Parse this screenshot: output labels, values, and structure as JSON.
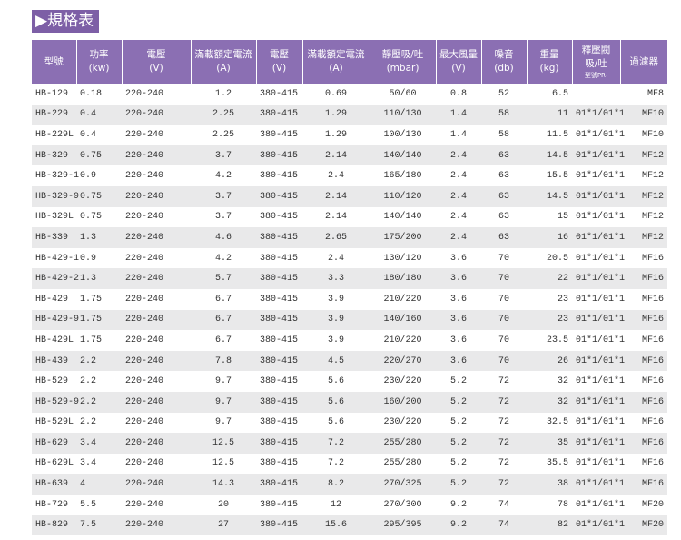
{
  "title": "▶規格表",
  "table": {
    "header": [
      [
        "型號"
      ],
      [
        "功率",
        "(kw)"
      ],
      [
        "電壓",
        "(V)"
      ],
      [
        "滿載額定電流",
        "(A)"
      ],
      [
        "電壓",
        "(V)"
      ],
      [
        "滿載額定電流",
        "(A)"
      ],
      [
        "靜壓吸/吐",
        "(mbar)"
      ],
      [
        "最大風量",
        "(V)"
      ],
      [
        "噪音",
        "(db)"
      ],
      [
        "重量",
        "(kg)"
      ],
      [
        "釋壓閥",
        "吸/吐",
        "型號PR-"
      ],
      [
        "過濾器"
      ]
    ],
    "rows": [
      [
        "HB-129",
        "0.18",
        "220-240",
        "1.2",
        "380-415",
        "0.69",
        "50/60",
        "0.8",
        "52",
        "6.5",
        null,
        "MF8"
      ],
      [
        "HB-229",
        "0.4",
        "220-240",
        "2.25",
        "380-415",
        "1.29",
        "110/130",
        "1.4",
        "58",
        "11",
        "01*1/01*1",
        "MF10"
      ],
      [
        "HB-229L",
        "0.4",
        "220-240",
        "2.25",
        "380-415",
        "1.29",
        "100/130",
        "1.4",
        "58",
        "11.5",
        "01*1/01*1",
        "MF10"
      ],
      [
        "HB-329",
        "0.75",
        "220-240",
        "3.7",
        "380-415",
        "2.14",
        "140/140",
        "2.4",
        "63",
        "14.5",
        "01*1/01*1",
        "MF12"
      ],
      [
        "HB-329-1",
        "0.9",
        "220-240",
        "4.2",
        "380-415",
        "2.4",
        "165/180",
        "2.4",
        "63",
        "15.5",
        "01*1/01*1",
        "MF12"
      ],
      [
        "HB-329-9",
        "0.75",
        "220-240",
        "3.7",
        "380-415",
        "2.14",
        "110/120",
        "2.4",
        "63",
        "14.5",
        "01*1/01*1",
        "MF12"
      ],
      [
        "HB-329L",
        "0.75",
        "220-240",
        "3.7",
        "380-415",
        "2.14",
        "140/140",
        "2.4",
        "63",
        "15",
        "01*1/01*1",
        "MF12"
      ],
      [
        "HB-339",
        "1.3",
        "220-240",
        "4.6",
        "380-415",
        "2.65",
        "175/200",
        "2.4",
        "63",
        "16",
        "01*1/01*1",
        "MF12"
      ],
      [
        "HB-429-1",
        "0.9",
        "220-240",
        "4.2",
        "380-415",
        "2.4",
        "130/120",
        "3.6",
        "70",
        "20.5",
        "01*1/01*1",
        "MF16"
      ],
      [
        "HB-429-2",
        "1.3",
        "220-240",
        "5.7",
        "380-415",
        "3.3",
        "180/180",
        "3.6",
        "70",
        "22",
        "01*1/01*1",
        "MF16"
      ],
      [
        "HB-429",
        "1.75",
        "220-240",
        "6.7",
        "380-415",
        "3.9",
        "210/220",
        "3.6",
        "70",
        "23",
        "01*1/01*1",
        "MF16"
      ],
      [
        "HB-429-9",
        "1.75",
        "220-240",
        "6.7",
        "380-415",
        "3.9",
        "140/160",
        "3.6",
        "70",
        "23",
        "01*1/01*1",
        "MF16"
      ],
      [
        "HB-429L",
        "1.75",
        "220-240",
        "6.7",
        "380-415",
        "3.9",
        "210/220",
        "3.6",
        "70",
        "23.5",
        "01*1/01*1",
        "MF16"
      ],
      [
        "HB-439",
        "2.2",
        "220-240",
        "7.8",
        "380-415",
        "4.5",
        "220/270",
        "3.6",
        "70",
        "26",
        "01*1/01*1",
        "MF16"
      ],
      [
        "HB-529",
        "2.2",
        "220-240",
        "9.7",
        "380-415",
        "5.6",
        "230/220",
        "5.2",
        "72",
        "32",
        "01*1/01*1",
        "MF16"
      ],
      [
        "HB-529-9",
        "2.2",
        "220-240",
        "9.7",
        "380-415",
        "5.6",
        "160/200",
        "5.2",
        "72",
        "32",
        "01*1/01*1",
        "MF16"
      ],
      [
        "HB-529L",
        "2.2",
        "220-240",
        "9.7",
        "380-415",
        "5.6",
        "230/220",
        "5.2",
        "72",
        "32.5",
        "01*1/01*1",
        "MF16"
      ],
      [
        "HB-629",
        "3.4",
        "220-240",
        "12.5",
        "380-415",
        "7.2",
        "255/280",
        "5.2",
        "72",
        "35",
        "01*1/01*1",
        "MF16"
      ],
      [
        "HB-629L",
        "3.4",
        "220-240",
        "12.5",
        "380-415",
        "7.2",
        "255/280",
        "5.2",
        "72",
        "35.5",
        "01*1/01*1",
        "MF16"
      ],
      [
        "HB-639",
        "4",
        "220-240",
        "14.3",
        "380-415",
        "8.2",
        "270/325",
        "5.2",
        "72",
        "38",
        "01*1/01*1",
        "MF16"
      ],
      [
        "HB-729",
        "5.5",
        "220-240",
        "20",
        "380-415",
        "12",
        "270/300",
        "9.2",
        "74",
        "78",
        "01*1/01*1",
        "MF20"
      ],
      [
        "HB-829",
        "7.5",
        "220-240",
        "27",
        "380-415",
        "15.6",
        "295/395",
        "9.2",
        "74",
        "82",
        "01*1/01*1",
        "MF20"
      ]
    ]
  }
}
